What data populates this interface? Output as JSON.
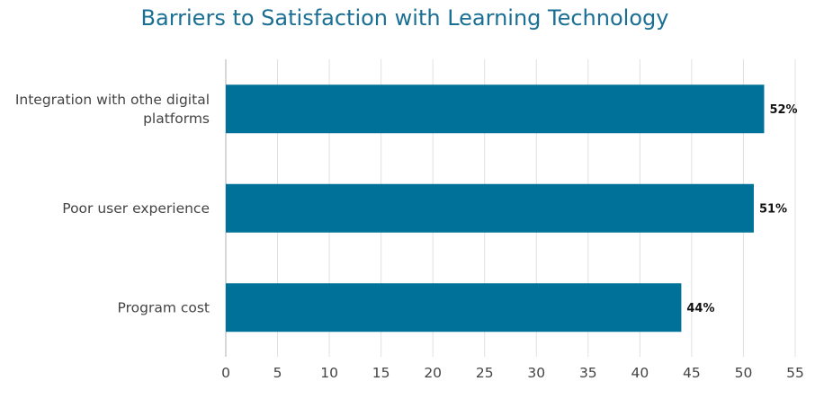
{
  "chart_data": {
    "type": "bar",
    "orientation": "horizontal",
    "title": "Barriers to Satisfaction with Learning Technology",
    "categories": [
      "Integration with othe digital platforms",
      "Poor user experience",
      "Program cost"
    ],
    "category_lines": [
      [
        "Integration with othe digital",
        "platforms"
      ],
      [
        "Poor user experience"
      ],
      [
        "Program cost"
      ]
    ],
    "values": [
      52,
      51,
      44
    ],
    "data_labels": [
      "52%",
      "51%",
      "44%"
    ],
    "x_ticks": [
      "0",
      "5",
      "10",
      "15",
      "20",
      "25",
      "30",
      "35",
      "40",
      "45",
      "50",
      "55"
    ],
    "xlim": [
      0,
      55
    ],
    "xlabel": "",
    "ylabel": "",
    "grid": true,
    "legend": "none",
    "bar_color": "#00729a"
  }
}
